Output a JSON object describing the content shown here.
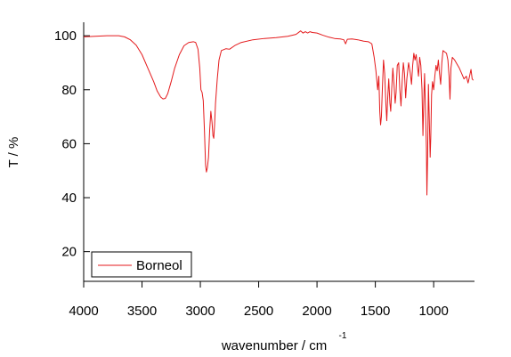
{
  "chart_data": {
    "type": "line",
    "title": "",
    "xlabel": "wavenumber / cm",
    "xlabel_superscript": "-1",
    "ylabel": "T / %",
    "xlim": [
      4000,
      650
    ],
    "x_reversed": true,
    "ylim": [
      9,
      105
    ],
    "xticks": [
      "4000",
      "3500",
      "3000",
      "2500",
      "2000",
      "1500",
      "1000"
    ],
    "xtick_values": [
      4000,
      3500,
      3000,
      2500,
      2000,
      1500,
      1000
    ],
    "yticks": [
      "20",
      "40",
      "60",
      "80",
      "100"
    ],
    "ytick_values": [
      20,
      40,
      60,
      80,
      100
    ],
    "grid": false,
    "legend": {
      "placement": "bottom-left",
      "entries": [
        "Borneol"
      ]
    },
    "series": [
      {
        "name": "Borneol",
        "color": "#e41a1c",
        "points": [
          [
            4000,
            99.6
          ],
          [
            3900,
            99.8
          ],
          [
            3800,
            100.0
          ],
          [
            3700,
            100.0
          ],
          [
            3650,
            99.6
          ],
          [
            3600,
            98.5
          ],
          [
            3550,
            96.5
          ],
          [
            3500,
            93.0
          ],
          [
            3450,
            88.0
          ],
          [
            3400,
            83.0
          ],
          [
            3370,
            79.5
          ],
          [
            3340,
            77.3
          ],
          [
            3320,
            76.6
          ],
          [
            3300,
            76.8
          ],
          [
            3280,
            78.5
          ],
          [
            3250,
            83.0
          ],
          [
            3220,
            88.0
          ],
          [
            3180,
            93.0
          ],
          [
            3140,
            96.3
          ],
          [
            3100,
            97.5
          ],
          [
            3060,
            97.8
          ],
          [
            3040,
            97.5
          ],
          [
            3020,
            95.0
          ],
          [
            3005,
            88.0
          ],
          [
            2995,
            80.0
          ],
          [
            2985,
            79.0
          ],
          [
            2975,
            76.0
          ],
          [
            2965,
            65.0
          ],
          [
            2955,
            52.0
          ],
          [
            2948,
            49.5
          ],
          [
            2940,
            51.0
          ],
          [
            2930,
            55.0
          ],
          [
            2920,
            65.0
          ],
          [
            2910,
            72.0
          ],
          [
            2900,
            68.0
          ],
          [
            2892,
            63.0
          ],
          [
            2885,
            62.0
          ],
          [
            2878,
            67.0
          ],
          [
            2870,
            75.0
          ],
          [
            2855,
            84.0
          ],
          [
            2840,
            91.0
          ],
          [
            2820,
            94.5
          ],
          [
            2780,
            95.2
          ],
          [
            2750,
            95.0
          ],
          [
            2700,
            96.5
          ],
          [
            2650,
            97.5
          ],
          [
            2550,
            98.5
          ],
          [
            2450,
            99.0
          ],
          [
            2350,
            99.3
          ],
          [
            2250,
            99.8
          ],
          [
            2180,
            100.5
          ],
          [
            2140,
            101.8
          ],
          [
            2120,
            101.0
          ],
          [
            2100,
            101.5
          ],
          [
            2080,
            101.0
          ],
          [
            2060,
            101.5
          ],
          [
            2040,
            101.2
          ],
          [
            2000,
            101.0
          ],
          [
            1950,
            100.2
          ],
          [
            1900,
            99.5
          ],
          [
            1850,
            99.0
          ],
          [
            1800,
            98.8
          ],
          [
            1770,
            98.5
          ],
          [
            1755,
            97.0
          ],
          [
            1740,
            98.7
          ],
          [
            1700,
            98.8
          ],
          [
            1650,
            98.5
          ],
          [
            1600,
            98.0
          ],
          [
            1560,
            97.8
          ],
          [
            1530,
            97.0
          ],
          [
            1510,
            92.0
          ],
          [
            1495,
            87.0
          ],
          [
            1480,
            80.0
          ],
          [
            1470,
            85.0
          ],
          [
            1462,
            72.0
          ],
          [
            1455,
            67.0
          ],
          [
            1448,
            70.0
          ],
          [
            1440,
            80.0
          ],
          [
            1430,
            91.0
          ],
          [
            1420,
            86.0
          ],
          [
            1410,
            75.0
          ],
          [
            1402,
            68.5
          ],
          [
            1395,
            76.0
          ],
          [
            1385,
            84.0
          ],
          [
            1375,
            75.0
          ],
          [
            1368,
            72.0
          ],
          [
            1360,
            80.0
          ],
          [
            1350,
            88.0
          ],
          [
            1340,
            82.0
          ],
          [
            1330,
            75.0
          ],
          [
            1322,
            79.0
          ],
          [
            1312,
            89.0
          ],
          [
            1300,
            90.0
          ],
          [
            1290,
            80.0
          ],
          [
            1280,
            74.0
          ],
          [
            1270,
            83.0
          ],
          [
            1260,
            90.0
          ],
          [
            1250,
            86.0
          ],
          [
            1240,
            77.0
          ],
          [
            1230,
            84.0
          ],
          [
            1215,
            90.0
          ],
          [
            1200,
            86.0
          ],
          [
            1190,
            82.0
          ],
          [
            1180,
            89.0
          ],
          [
            1170,
            93.5
          ],
          [
            1160,
            91.0
          ],
          [
            1150,
            93.0
          ],
          [
            1140,
            89.0
          ],
          [
            1130,
            85.0
          ],
          [
            1120,
            92.0
          ],
          [
            1110,
            89.0
          ],
          [
            1100,
            80.0
          ],
          [
            1092,
            63.0
          ],
          [
            1085,
            76.0
          ],
          [
            1078,
            86.0
          ],
          [
            1070,
            72.0
          ],
          [
            1062,
            58.0
          ],
          [
            1058,
            41.0
          ],
          [
            1052,
            55.0
          ],
          [
            1045,
            82.0
          ],
          [
            1038,
            70.0
          ],
          [
            1030,
            55.0
          ],
          [
            1025,
            62.0
          ],
          [
            1018,
            78.0
          ],
          [
            1010,
            83.0
          ],
          [
            1000,
            80.0
          ],
          [
            990,
            85.0
          ],
          [
            980,
            89.0
          ],
          [
            970,
            87.0
          ],
          [
            960,
            91.0
          ],
          [
            950,
            86.0
          ],
          [
            940,
            82.0
          ],
          [
            930,
            90.0
          ],
          [
            920,
            94.5
          ],
          [
            905,
            94.0
          ],
          [
            890,
            93.5
          ],
          [
            878,
            91.0
          ],
          [
            868,
            85.0
          ],
          [
            860,
            76.5
          ],
          [
            852,
            88.0
          ],
          [
            840,
            92.0
          ],
          [
            820,
            91.0
          ],
          [
            800,
            89.5
          ],
          [
            780,
            88.0
          ],
          [
            760,
            86.0
          ],
          [
            740,
            84.0
          ],
          [
            720,
            85.0
          ],
          [
            705,
            82.5
          ],
          [
            690,
            85.5
          ],
          [
            680,
            87.5
          ],
          [
            670,
            84.0
          ],
          [
            660,
            83.5
          ]
        ]
      }
    ]
  }
}
